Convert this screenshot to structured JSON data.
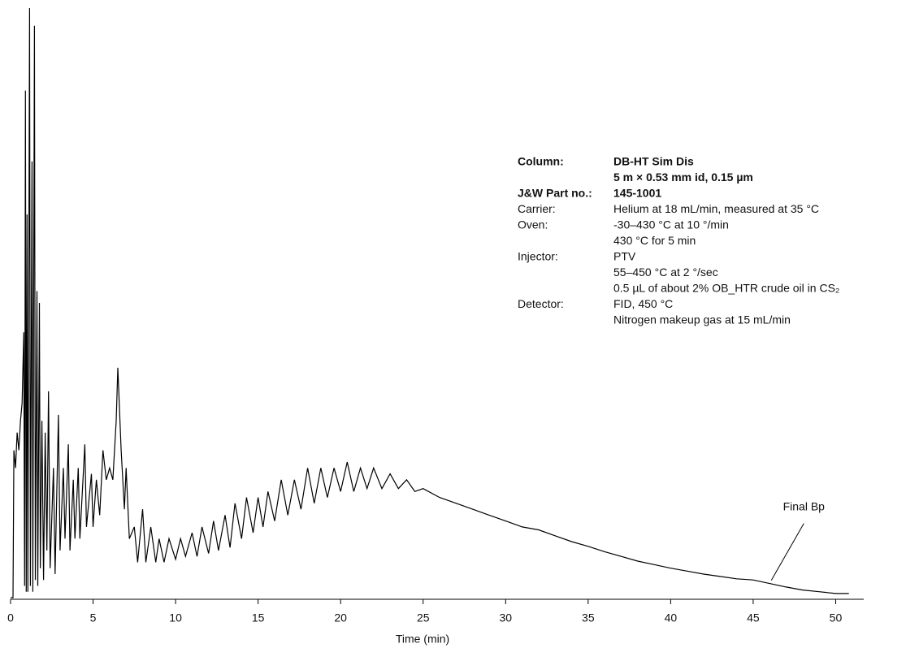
{
  "chart_data": {
    "type": "line",
    "xlabel": "Time (min)",
    "xlim": [
      0,
      51.7
    ],
    "xticks": [
      0,
      5,
      10,
      15,
      20,
      25,
      30,
      35,
      40,
      45,
      50
    ],
    "ylim": [
      0,
      100
    ],
    "x": [
      0.0,
      0.15,
      0.2,
      0.3,
      0.4,
      0.5,
      0.6,
      0.7,
      0.8,
      0.85,
      0.9,
      0.95,
      1.0,
      1.05,
      1.15,
      1.2,
      1.3,
      1.35,
      1.45,
      1.5,
      1.6,
      1.65,
      1.75,
      1.8,
      1.9,
      2.0,
      2.1,
      2.2,
      2.3,
      2.4,
      2.6,
      2.7,
      2.9,
      3.0,
      3.2,
      3.3,
      3.5,
      3.6,
      3.8,
      3.9,
      4.1,
      4.2,
      4.5,
      4.6,
      4.9,
      5.0,
      5.2,
      5.4,
      5.6,
      5.8,
      6.0,
      6.2,
      6.4,
      6.5,
      6.7,
      6.9,
      7.0,
      7.2,
      7.5,
      7.7,
      8.0,
      8.2,
      8.5,
      8.8,
      9.0,
      9.3,
      9.6,
      10.0,
      10.3,
      10.6,
      11.0,
      11.3,
      11.6,
      12.0,
      12.3,
      12.6,
      13.0,
      13.3,
      13.6,
      14.0,
      14.3,
      14.7,
      15.0,
      15.3,
      15.6,
      16.0,
      16.4,
      16.8,
      17.2,
      17.6,
      18.0,
      18.4,
      18.8,
      19.2,
      19.6,
      20.0,
      20.4,
      20.8,
      21.2,
      21.6,
      22.0,
      22.5,
      23.0,
      23.5,
      24.0,
      24.5,
      25.0,
      26,
      27,
      28,
      29,
      30,
      31,
      32,
      33,
      34,
      35,
      36,
      37,
      38,
      39,
      40,
      41,
      42,
      43,
      44,
      45,
      46,
      47,
      48,
      49,
      50,
      50.8
    ],
    "series": [
      {
        "color": "#000000",
        "values": [
          0,
          0,
          25,
          22,
          28,
          25,
          30,
          33,
          45,
          2,
          86,
          1,
          65,
          1,
          100,
          2,
          74,
          1,
          97,
          3,
          52,
          2,
          50,
          5,
          30,
          3,
          28,
          8,
          35,
          5,
          22,
          4,
          31,
          8,
          22,
          10,
          26,
          8,
          20,
          10,
          22,
          10,
          26,
          12,
          21,
          12,
          20,
          14,
          25,
          20,
          22,
          20,
          30,
          39,
          25,
          15,
          22,
          10,
          12,
          6,
          15,
          6,
          12,
          6,
          10,
          6,
          10,
          6.5,
          10,
          7,
          11,
          7,
          12,
          7.5,
          13,
          8,
          14,
          8.5,
          16,
          10,
          17,
          11,
          17,
          12,
          18,
          13,
          20,
          14,
          20,
          15,
          22,
          16,
          22,
          17,
          22,
          18,
          23,
          18,
          22,
          18.5,
          22,
          18.5,
          21,
          18.5,
          20,
          18,
          18.5,
          17,
          16,
          15,
          14,
          13,
          12,
          11.5,
          10.5,
          9.5,
          8.7,
          7.8,
          7,
          6.2,
          5.6,
          5,
          4.5,
          4,
          3.6,
          3.2,
          3,
          2.4,
          1.8,
          1.3,
          1,
          0.7,
          0.7
        ]
      }
    ],
    "annotations": [
      {
        "text": "Final Bp",
        "x": 46.1
      }
    ],
    "conditions": [
      {
        "label": "Column:",
        "lines": [
          "DB-HT Sim Dis",
          "5 m × 0.53 mm id, 0.15 µm"
        ],
        "bold": true
      },
      {
        "label": "J&W Part no.:",
        "lines": [
          "145-1001"
        ],
        "bold": true
      },
      {
        "label": "Carrier:",
        "lines": [
          "Helium at 18 mL/min, measured at 35 °C"
        ],
        "bold": false
      },
      {
        "label": "Oven:",
        "lines": [
          "-30–430 °C at 10 °/min",
          "430 °C for 5 min"
        ],
        "bold": false
      },
      {
        "label": "Injector:",
        "lines": [
          "PTV",
          "55–450 °C at 2 °/sec",
          "0.5 µL of about 2% OB_HTR crude oil in CS₂"
        ],
        "bold": false
      },
      {
        "label": "Detector:",
        "lines": [
          "FID, 450 °C",
          "Nitrogen makeup gas at 15 mL/min"
        ],
        "bold": false
      }
    ]
  }
}
